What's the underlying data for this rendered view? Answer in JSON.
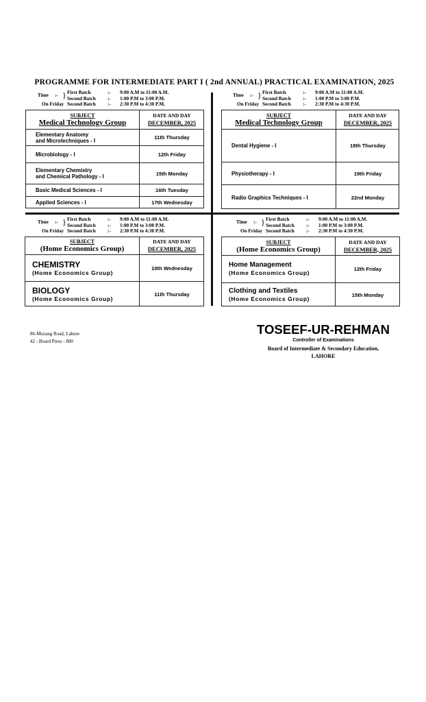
{
  "title": "PROGRAMME  FOR  INTERMEDIATE  PART I  ( 2nd ANNUAL) PRACTICAL  EXAMINATION,  2025",
  "timing": {
    "time_label": "Time",
    "sep": ":-",
    "friday_label": "On Friday",
    "first_batch": "First  Batch",
    "second_batch": "Second  Batch",
    "first_time": "9:00 A.M to  11:00 A.M.",
    "second_time": "1:00 P.M  to    3:00 P.M.",
    "friday_time": "2:30 P.M  to    4:30 P.M."
  },
  "tables": [
    {
      "subject_label": "SUBJECT",
      "group": "Medical Technology Group",
      "date_label": "DATE  AND DAY",
      "month": "DECEMBER,  2025",
      "rows": [
        {
          "subject": [
            "Elementary Anatomy",
            "and Microtechniques  - I"
          ],
          "date": "11th Thursday"
        },
        {
          "subject": [
            "Microbiology - I"
          ],
          "date": "12th Friday"
        },
        {
          "subject": [
            "Elementary Chemistry",
            "and Chemical Pathology - I"
          ],
          "date": "15th Monday"
        },
        {
          "subject": [
            "Basic Medical Sciences - I"
          ],
          "date": "16th Tuesday"
        },
        {
          "subject": [
            "Applied  Sciences - I"
          ],
          "date": "17th Wednesday"
        }
      ]
    },
    {
      "subject_label": "SUBJECT",
      "group": "Medical Technology Group",
      "date_label": "DATE  AND DAY",
      "month": "DECEMBER,  2025",
      "rows": [
        {
          "subject": [
            "Dental Hygiene - I"
          ],
          "date": "18th Thursday"
        },
        {
          "subject": [
            "Physiotherapy - I"
          ],
          "date": "19th Friday"
        },
        {
          "subject": [
            "Radio Graphics Techniques - I"
          ],
          "date": "22nd Monday"
        }
      ]
    },
    {
      "subject_label": "SUBJECT",
      "group": "(Home Economics Group)",
      "date_label": "DATE  AND DAY",
      "month": "DECEMBER,  2025",
      "rows": [
        {
          "subject": [
            "CHEMISTRY",
            "(Home Economics Group)"
          ],
          "date": "10th Wednesday"
        },
        {
          "subject": [
            "BIOLOGY",
            "(Home Economics Group)"
          ],
          "date": "11th Thursday"
        }
      ]
    },
    {
      "subject_label": "SUBJECT",
      "group": "(Home Economics Group)",
      "date_label": "DATE  AND DAY",
      "month": "DECEMBER,  2025",
      "rows": [
        {
          "subject": [
            "Home Management",
            "(Home Economics Group)"
          ],
          "date": "12th Friday"
        },
        {
          "subject": [
            "Clothing and  Textiles",
            "(Home Economics Group)"
          ],
          "date": "15th Monday"
        }
      ]
    }
  ],
  "footer": {
    "address": "86-Mozang Road, Lahore",
    "press": "42 - Board Press - 800",
    "signatory": "TOSEEF-UR-REHMAN",
    "designation": "Controller  of  Examinations",
    "board": "Board of Intermediate &  Secondary  Education,",
    "city": "LAHORE"
  }
}
